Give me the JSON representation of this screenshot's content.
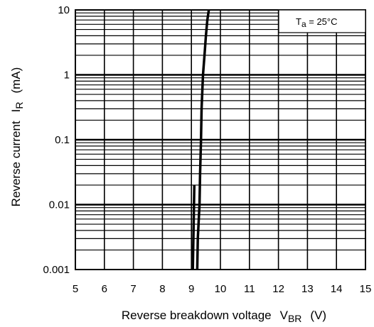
{
  "chart_data": {
    "type": "line",
    "title": "",
    "x_axis": {
      "label_main": "Reverse breakdown voltage",
      "label_symbol": "V",
      "label_subscript": "BR",
      "label_unit": "(V)",
      "range": [
        5,
        15
      ],
      "ticks": [
        "5",
        "6",
        "7",
        "8",
        "9",
        "10",
        "11",
        "12",
        "13",
        "14",
        "15"
      ]
    },
    "y_axis": {
      "label_main": "Reverse current",
      "label_symbol": "I",
      "label_subscript": "R",
      "label_unit": "(mA)",
      "scale": "log",
      "range": [
        0.001,
        10
      ],
      "ticks": [
        "0.001",
        "0.01",
        "0.1",
        "1",
        "10"
      ]
    },
    "grid": true,
    "annotation": {
      "text_main": "T",
      "text_subscript": "a",
      "text_rest": " = 25°C",
      "placement": "top-right"
    },
    "series": [
      {
        "color": "#000000",
        "x": [
          9.2,
          9.22,
          9.28,
          9.3,
          9.33,
          9.35,
          9.4,
          9.45,
          9.5,
          9.55,
          9.6
        ],
        "y": [
          0.001,
          0.003,
          0.01,
          0.03,
          0.1,
          0.3,
          1,
          2,
          4,
          7,
          10
        ]
      },
      {
        "color": "#000000",
        "x": [
          9.05,
          9.1
        ],
        "y": [
          0.001,
          0.02
        ]
      }
    ]
  }
}
